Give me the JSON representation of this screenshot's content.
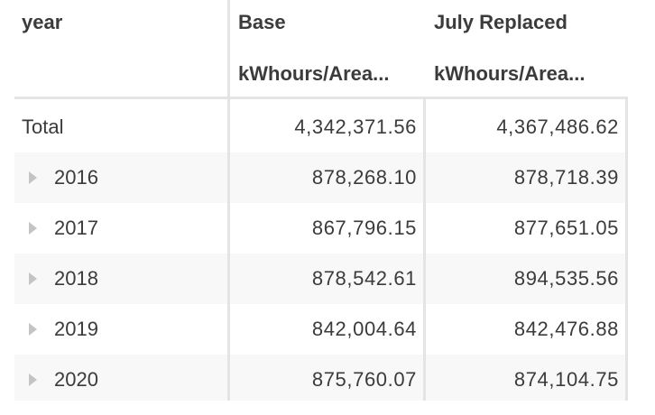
{
  "header": {
    "row_field": "year",
    "columns": [
      {
        "name": "Base",
        "measure": "kWhours/Area..."
      },
      {
        "name": "July Replaced",
        "measure": "kWhours/Area..."
      }
    ]
  },
  "total": {
    "label": "Total",
    "values": [
      "4,342,371.56",
      "4,367,486.62"
    ]
  },
  "rows": [
    {
      "label": "2016",
      "values": [
        "878,268.10",
        "878,718.39"
      ]
    },
    {
      "label": "2017",
      "values": [
        "867,796.15",
        "877,651.05"
      ]
    },
    {
      "label": "2018",
      "values": [
        "878,542.61",
        "894,535.56"
      ]
    },
    {
      "label": "2019",
      "values": [
        "842,004.64",
        "842,476.88"
      ]
    },
    {
      "label": "2020",
      "values": [
        "875,760.07",
        "874,104.75"
      ]
    }
  ],
  "icons": {
    "expander": "caret-right-icon"
  },
  "colors": {
    "text": "#3b3b3b",
    "divider": "#e4e4e4",
    "alt_row": "#f8f8f8",
    "expander": "#c4c4c4"
  }
}
